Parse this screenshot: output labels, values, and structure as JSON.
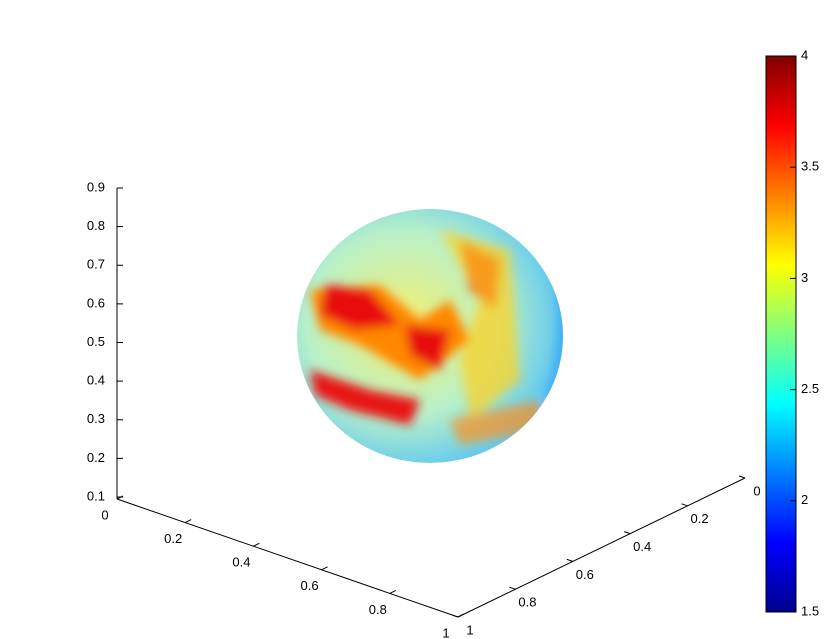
{
  "chart_data": {
    "type": "surface",
    "xlim": [
      0,
      1
    ],
    "xticks": [
      0,
      0.2,
      0.4,
      0.6,
      0.8,
      1
    ],
    "ylim": [
      0,
      1
    ],
    "yticks": [
      0,
      0.2,
      0.4,
      0.6,
      0.8,
      1
    ],
    "zlim": [
      0.1,
      0.9
    ],
    "zticks": [
      0.1,
      0.2,
      0.3,
      0.4,
      0.5,
      0.6,
      0.7,
      0.8,
      0.9
    ],
    "colorbar": {
      "colormap": "jet",
      "lim": [
        1.5,
        4
      ],
      "ticks": [
        1.5,
        2,
        2.5,
        3,
        3.5,
        4
      ]
    }
  }
}
